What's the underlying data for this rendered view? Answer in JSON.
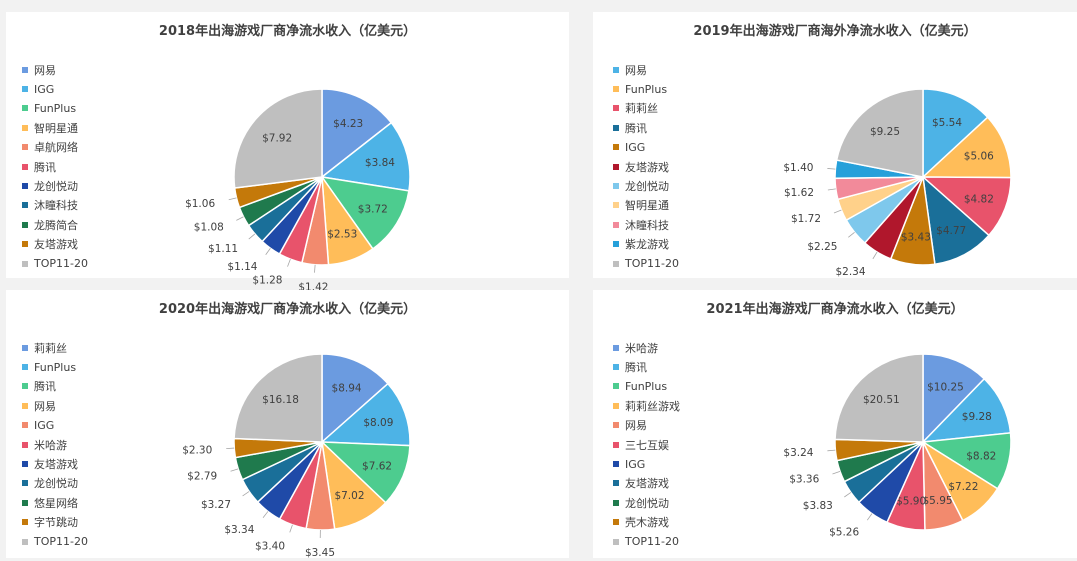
{
  "chart_data": [
    {
      "type": "pie",
      "title": "2018年出海游戏厂商净流水收入（亿美元）",
      "categories": [
        "网易",
        "IGG",
        "FunPlus",
        "智明星通",
        "卓航网络",
        "腾讯",
        "龙创悦动",
        "沐瞳科技",
        "龙腾简合",
        "友塔游戏",
        "TOP11-20"
      ],
      "values": [
        4.23,
        3.84,
        3.72,
        2.53,
        1.42,
        1.28,
        1.14,
        1.11,
        1.08,
        1.06,
        7.92
      ],
      "data_labels": [
        "$4.23",
        "$3.84",
        "$3.72",
        "$2.53",
        "$1.42",
        "$1.28",
        "$1.14",
        "$1.11",
        "$1.08",
        "$1.06",
        "$7.92"
      ],
      "colors": [
        "#6b9be0",
        "#4db3e6",
        "#4dcc8f",
        "#ffbd59",
        "#f28a6e",
        "#e8536b",
        "#1f4aa8",
        "#1a6f99",
        "#1f7a4d",
        "#c4790a",
        "#bfbfbf"
      ],
      "legend_position": "left"
    },
    {
      "type": "pie",
      "title": "2019年出海游戏厂商海外净流水收入（亿美元）",
      "categories": [
        "网易",
        "FunPlus",
        "莉莉丝",
        "腾讯",
        "IGG",
        "友塔游戏",
        "龙创悦动",
        "智明星通",
        "沐瞳科技",
        "紫龙游戏",
        "TOP11-20"
      ],
      "values": [
        5.54,
        5.06,
        4.82,
        4.77,
        3.43,
        2.34,
        2.25,
        1.72,
        1.62,
        1.4,
        9.25
      ],
      "data_labels": [
        "$5.54",
        "$5.06",
        "$4.82",
        "$4.77",
        "$3.43",
        "$2.34",
        "$2.25",
        "$1.72",
        "$1.62",
        "$1.40",
        "$9.25"
      ],
      "colors": [
        "#4db3e6",
        "#ffbd59",
        "#e8536b",
        "#1a6f99",
        "#c4790a",
        "#b0172c",
        "#7ec8ec",
        "#ffd18a",
        "#f28a9a",
        "#26a0da",
        "#bfbfbf"
      ],
      "legend_position": "left"
    },
    {
      "type": "pie",
      "title": "2020年出海游戏厂商净流水收入（亿美元）",
      "categories": [
        "莉莉丝",
        "FunPlus",
        "腾讯",
        "网易",
        "IGG",
        "米哈游",
        "友塔游戏",
        "龙创悦动",
        "悠星网络",
        "字节跳动",
        "TOP11-20"
      ],
      "values": [
        8.94,
        8.09,
        7.62,
        7.02,
        3.45,
        3.4,
        3.34,
        3.27,
        2.79,
        2.3,
        16.18
      ],
      "data_labels": [
        "$8.94",
        "$8.09",
        "$7.62",
        "$7.02",
        "$3.45",
        "$3.40",
        "$3.34",
        "$3.27",
        "$2.79",
        "$2.30",
        "$16.18"
      ],
      "colors": [
        "#6b9be0",
        "#4db3e6",
        "#4dcc8f",
        "#ffbd59",
        "#f28a6e",
        "#e8536b",
        "#1f4aa8",
        "#1a6f99",
        "#1f7a4d",
        "#c4790a",
        "#bfbfbf"
      ],
      "legend_position": "left"
    },
    {
      "type": "pie",
      "title": "2021年出海游戏厂商净流水收入（亿美元）",
      "categories": [
        "米哈游",
        "腾讯",
        "FunPlus",
        "莉莉丝游戏",
        "网易",
        "三七互娱",
        "IGG",
        "友塔游戏",
        "龙创悦动",
        "壳木游戏",
        "TOP11-20"
      ],
      "values": [
        10.25,
        9.28,
        8.82,
        7.22,
        5.95,
        5.9,
        5.26,
        3.83,
        3.36,
        3.24,
        20.51
      ],
      "data_labels": [
        "$10.25",
        "$9.28",
        "$8.82",
        "$7.22",
        "$5.95",
        "$5.90",
        "$5.26",
        "$3.83",
        "$3.36",
        "$3.24",
        "$20.51"
      ],
      "colors": [
        "#6b9be0",
        "#4db3e6",
        "#4dcc8f",
        "#ffbd59",
        "#f28a6e",
        "#e8536b",
        "#1f4aa8",
        "#1a6f99",
        "#1f7a4d",
        "#c4790a",
        "#bfbfbf"
      ],
      "legend_position": "left"
    }
  ]
}
